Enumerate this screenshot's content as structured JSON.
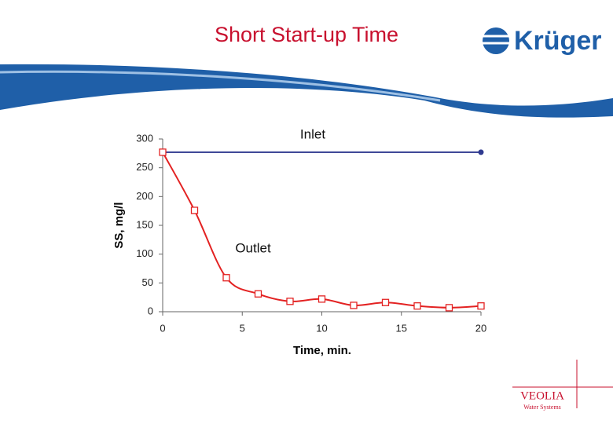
{
  "chart_data": {
    "type": "line",
    "title": "Short Start-up Time",
    "x_label": "Time, min.",
    "y_label": "SS, mg/l",
    "xlim": [
      0,
      20
    ],
    "xticks": [
      0,
      5,
      10,
      15,
      20
    ],
    "ylim": [
      0,
      300
    ],
    "yticks": [
      0,
      50,
      100,
      150,
      200,
      250,
      300
    ],
    "grid": false,
    "series": [
      {
        "name": "Inlet",
        "color": "#2f3a8f",
        "marker": "circle",
        "x": [
          0,
          20
        ],
        "values": [
          277,
          277
        ]
      },
      {
        "name": "Outlet",
        "color": "#e32222",
        "marker": "square",
        "x": [
          0,
          2,
          4,
          6,
          8,
          10,
          12,
          14,
          16,
          18,
          20
        ],
        "values": [
          277,
          176,
          59,
          31,
          18,
          22,
          11,
          16,
          10,
          7,
          10
        ]
      }
    ]
  },
  "branding": {
    "company": "Krüger",
    "partner": "VEOLIA",
    "partner_sub": "Water Systems"
  }
}
